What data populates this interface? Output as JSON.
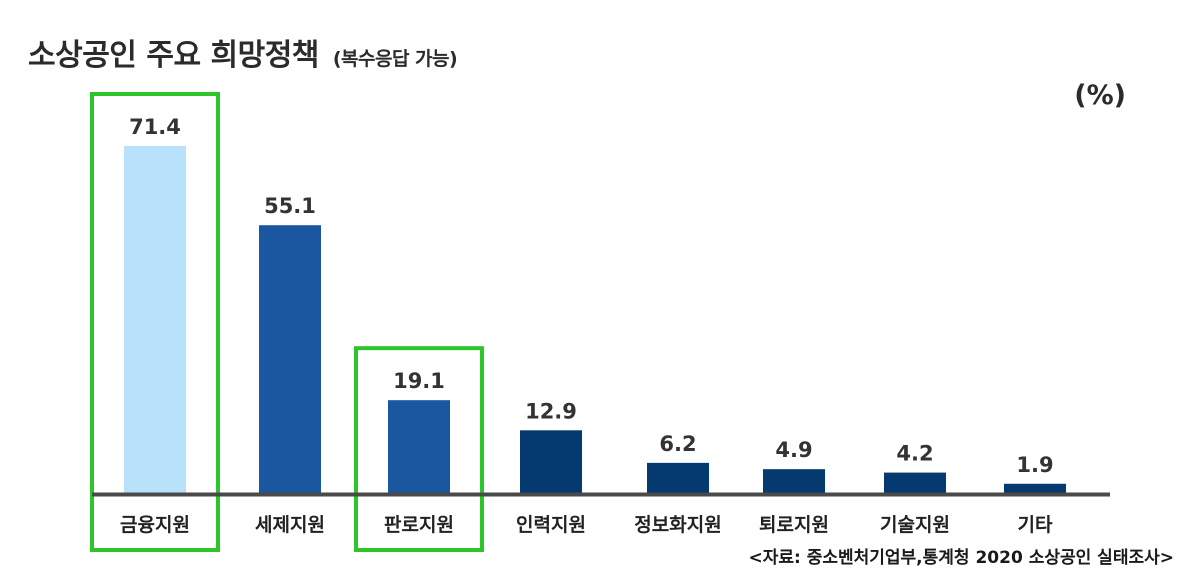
{
  "header": {
    "title": "소상공인 주요 희망정책",
    "subtitle": "(복수응답 가능)",
    "unit": "(%)"
  },
  "footer": {
    "source": "<자료: 중소벤처기업부,통계청 2020 소상공인 실태조사>"
  },
  "colors": {
    "light_bar": "#b8e2fb",
    "mid_bar": "#1a57a0",
    "dark_bar": "#043a70",
    "baseline": "#4a4a4a",
    "highlight_box": "#2ec52b"
  },
  "chart_data": {
    "type": "bar",
    "categories": [
      "금융지원",
      "세제지원",
      "판로지원",
      "인력지원",
      "정보화지원",
      "퇴로지원",
      "기술지원",
      "기타"
    ],
    "values": [
      71.4,
      55.1,
      19.1,
      12.9,
      6.2,
      4.9,
      4.2,
      1.9
    ],
    "value_labels": [
      "71.4",
      "55.1",
      "19.1",
      "12.9",
      "6.2",
      "4.9",
      "4.2",
      "1.9"
    ],
    "bar_colors": [
      "light",
      "mid",
      "mid",
      "dark",
      "dark",
      "dark",
      "dark",
      "dark"
    ],
    "highlighted_categories": [
      "금융지원",
      "판로지원"
    ],
    "ylim": [
      0,
      75
    ],
    "grid": false,
    "legend": "none"
  }
}
